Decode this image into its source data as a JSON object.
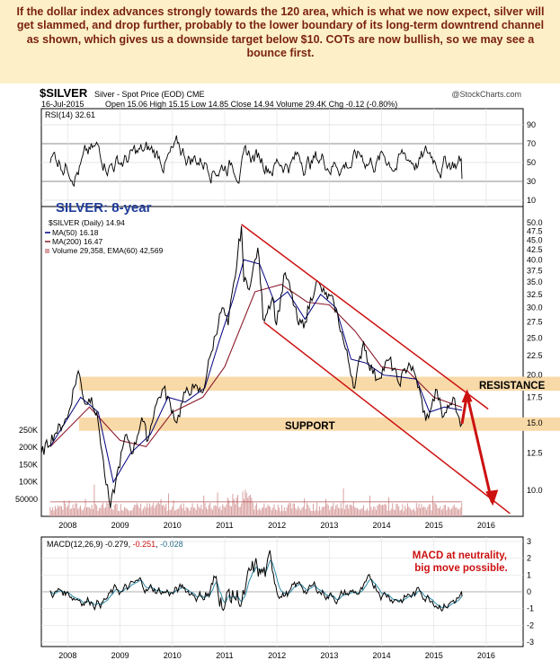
{
  "headline": "If the dollar index advances strongly towards the 120 area, which is what we now expect, silver will get slammed, and drop further, probably to the lower boundary of its long-term downtrend channel as shown, which gives us a downside target below $10. COTs are now bullish, so we may see a bounce first.",
  "header": {
    "symbol": "$SILVER",
    "description": "Silver - Spot Price (EOD)",
    "exchange": "CME",
    "source": "@StockCharts.com",
    "date": "16-Jul-2015",
    "ohlc": "Open 15.06  High 15.15  Low 14.85  Close 14.94  Volume 29.4K  Chg -0.12 (-0.80%)"
  },
  "colors": {
    "price": "#000000",
    "ma50": "#000080",
    "ma200": "#8b1a2b",
    "channel": "#cc1111",
    "band": "#f8d9a8",
    "volume": "#d9a0a0",
    "annotation": "#cc1111",
    "title_blue": "#1f3c99"
  },
  "chart_data": [
    {
      "type": "line",
      "panel": "rsi",
      "legend": "RSI(14) 32.61",
      "y_ticks": [
        90,
        70,
        50,
        30,
        10
      ],
      "ylim": [
        10,
        90
      ],
      "reference_lines": [
        70,
        30
      ],
      "last": 32.61
    },
    {
      "type": "line",
      "panel": "price",
      "title": "SILVER: 8-year",
      "legend": [
        "$SILVER (Daily) 14.94",
        "MA(50) 16.18",
        "MA(200) 16.47",
        "Volume 29,358, EMA(60) 42,569"
      ],
      "y_scale": "log",
      "y_ticks": [
        50.0,
        47.5,
        45.0,
        42.5,
        40.0,
        37.5,
        35.0,
        32.5,
        30.0,
        27.5,
        25.0,
        22.5,
        20.0,
        17.5,
        15.0,
        12.5,
        10.0
      ],
      "ylim": [
        8.5,
        50.0
      ],
      "x_ticks": [
        "2008",
        "2009",
        "2010",
        "2011",
        "2012",
        "2013",
        "2014",
        "2015",
        "2016"
      ],
      "series": [
        {
          "name": "$SILVER (Daily) 14.94",
          "points": [
            [
              "2007-07-01",
              12.5
            ],
            [
              "2007-10-01",
              14.0
            ],
            [
              "2008-01-01",
              15.5
            ],
            [
              "2008-03-15",
              20.5
            ],
            [
              "2008-05-01",
              16.8
            ],
            [
              "2008-06-15",
              17.5
            ],
            [
              "2008-08-01",
              15.0
            ],
            [
              "2008-09-15",
              11.0
            ],
            [
              "2008-10-25",
              9.0
            ],
            [
              "2008-12-01",
              10.5
            ],
            [
              "2009-02-15",
              14.0
            ],
            [
              "2009-04-01",
              12.5
            ],
            [
              "2009-06-01",
              15.5
            ],
            [
              "2009-07-15",
              13.5
            ],
            [
              "2009-09-01",
              16.5
            ],
            [
              "2009-11-01",
              18.5
            ],
            [
              "2010-02-01",
              15.0
            ],
            [
              "2010-04-01",
              18.0
            ],
            [
              "2010-06-01",
              18.5
            ],
            [
              "2010-08-01",
              18.0
            ],
            [
              "2010-10-01",
              23.0
            ],
            [
              "2010-12-15",
              30.0
            ],
            [
              "2011-01-25",
              27.0
            ],
            [
              "2011-03-15",
              36.0
            ],
            [
              "2011-04-28",
              49.0
            ],
            [
              "2011-05-15",
              35.0
            ],
            [
              "2011-07-01",
              34.5
            ],
            [
              "2011-08-20",
              43.0
            ],
            [
              "2011-09-26",
              28.0
            ],
            [
              "2011-12-01",
              32.0
            ],
            [
              "2011-12-29",
              27.0
            ],
            [
              "2012-02-28",
              37.0
            ],
            [
              "2012-06-01",
              27.0
            ],
            [
              "2012-07-15",
              27.5
            ],
            [
              "2012-10-01",
              35.0
            ],
            [
              "2012-12-01",
              32.5
            ],
            [
              "2013-02-01",
              31.0
            ],
            [
              "2013-04-15",
              24.0
            ],
            [
              "2013-06-27",
              18.5
            ],
            [
              "2013-08-28",
              24.5
            ],
            [
              "2013-10-01",
              21.5
            ],
            [
              "2013-12-01",
              19.5
            ],
            [
              "2014-02-24",
              22.0
            ],
            [
              "2014-05-01",
              19.0
            ],
            [
              "2014-07-10",
              21.5
            ],
            [
              "2014-09-01",
              19.5
            ],
            [
              "2014-11-05",
              15.2
            ],
            [
              "2014-12-15",
              16.5
            ],
            [
              "2015-01-22",
              18.3
            ],
            [
              "2015-03-01",
              15.5
            ],
            [
              "2015-04-15",
              16.5
            ],
            [
              "2015-05-15",
              17.5
            ],
            [
              "2015-06-15",
              15.8
            ],
            [
              "2015-07-16",
              14.94
            ]
          ]
        },
        {
          "name": "MA(50) 16.18",
          "points": [
            [
              "2007-09-01",
              13.0
            ],
            [
              "2008-04-01",
              17.5
            ],
            [
              "2008-08-01",
              16.0
            ],
            [
              "2008-11-15",
              10.5
            ],
            [
              "2009-03-15",
              12.5
            ],
            [
              "2009-08-01",
              14.0
            ],
            [
              "2009-12-01",
              17.5
            ],
            [
              "2010-04-01",
              17.0
            ],
            [
              "2010-08-15",
              18.5
            ],
            [
              "2010-12-01",
              25.0
            ],
            [
              "2011-03-01",
              31.5
            ],
            [
              "2011-05-15",
              40.0
            ],
            [
              "2011-09-01",
              39.0
            ],
            [
              "2011-12-15",
              31.0
            ],
            [
              "2012-03-15",
              33.0
            ],
            [
              "2012-07-15",
              28.0
            ],
            [
              "2012-11-01",
              32.5
            ],
            [
              "2013-02-15",
              30.0
            ],
            [
              "2013-06-01",
              22.0
            ],
            [
              "2013-09-15",
              21.5
            ],
            [
              "2014-01-15",
              20.0
            ],
            [
              "2014-05-01",
              19.8
            ],
            [
              "2014-09-01",
              19.5
            ],
            [
              "2014-12-01",
              16.0
            ],
            [
              "2015-03-15",
              16.5
            ],
            [
              "2015-07-16",
              16.18
            ]
          ]
        },
        {
          "name": "MA(200) 16.47",
          "points": [
            [
              "2007-09-01",
              13.0
            ],
            [
              "2008-06-01",
              16.5
            ],
            [
              "2009-01-01",
              13.5
            ],
            [
              "2009-07-01",
              13.0
            ],
            [
              "2010-01-01",
              16.0
            ],
            [
              "2010-08-01",
              17.5
            ],
            [
              "2011-01-01",
              21.0
            ],
            [
              "2011-08-01",
              33.0
            ],
            [
              "2012-02-01",
              34.5
            ],
            [
              "2012-08-01",
              31.0
            ],
            [
              "2013-01-01",
              30.5
            ],
            [
              "2013-07-01",
              26.0
            ],
            [
              "2014-01-01",
              21.0
            ],
            [
              "2014-07-01",
              20.5
            ],
            [
              "2015-01-01",
              17.5
            ],
            [
              "2015-07-16",
              16.47
            ]
          ]
        }
      ],
      "channel": {
        "upper": [
          [
            "2011-04-28",
            49.5
          ],
          [
            "2016-01-15",
            16.3
          ]
        ],
        "lower": [
          [
            "2011-10-01",
            27.5
          ],
          [
            "2016-06-15",
            8.7
          ]
        ]
      },
      "bands": [
        {
          "label": "RESISTANCE",
          "from": 18.2,
          "to": 19.8
        },
        {
          "label": "SUPPORT",
          "from": 14.3,
          "to": 15.5
        }
      ],
      "forecast_arrow": [
        [
          "2015-07-16",
          14.94
        ],
        [
          "2015-08-20",
          17.8
        ],
        [
          "2016-02-10",
          9.3
        ]
      ],
      "volume_ticks": [
        "250K",
        "200K",
        "150K",
        "100K",
        "50000"
      ],
      "volume_max": 250000
    },
    {
      "type": "line",
      "panel": "macd",
      "legend": [
        "MACD(12,26,9)",
        "-0.279",
        "-0.251",
        "-0.028"
      ],
      "annotation": "MACD at neutrality, big move possible.",
      "y_ticks": [
        3,
        2,
        1,
        0,
        -1,
        -2,
        -3
      ],
      "ylim": [
        -3,
        3
      ],
      "x_ticks": [
        "2008",
        "2009",
        "2010",
        "2011",
        "2012",
        "2013",
        "2014",
        "2015",
        "2016"
      ],
      "last": [
        -0.279,
        -0.251,
        -0.028
      ]
    }
  ]
}
